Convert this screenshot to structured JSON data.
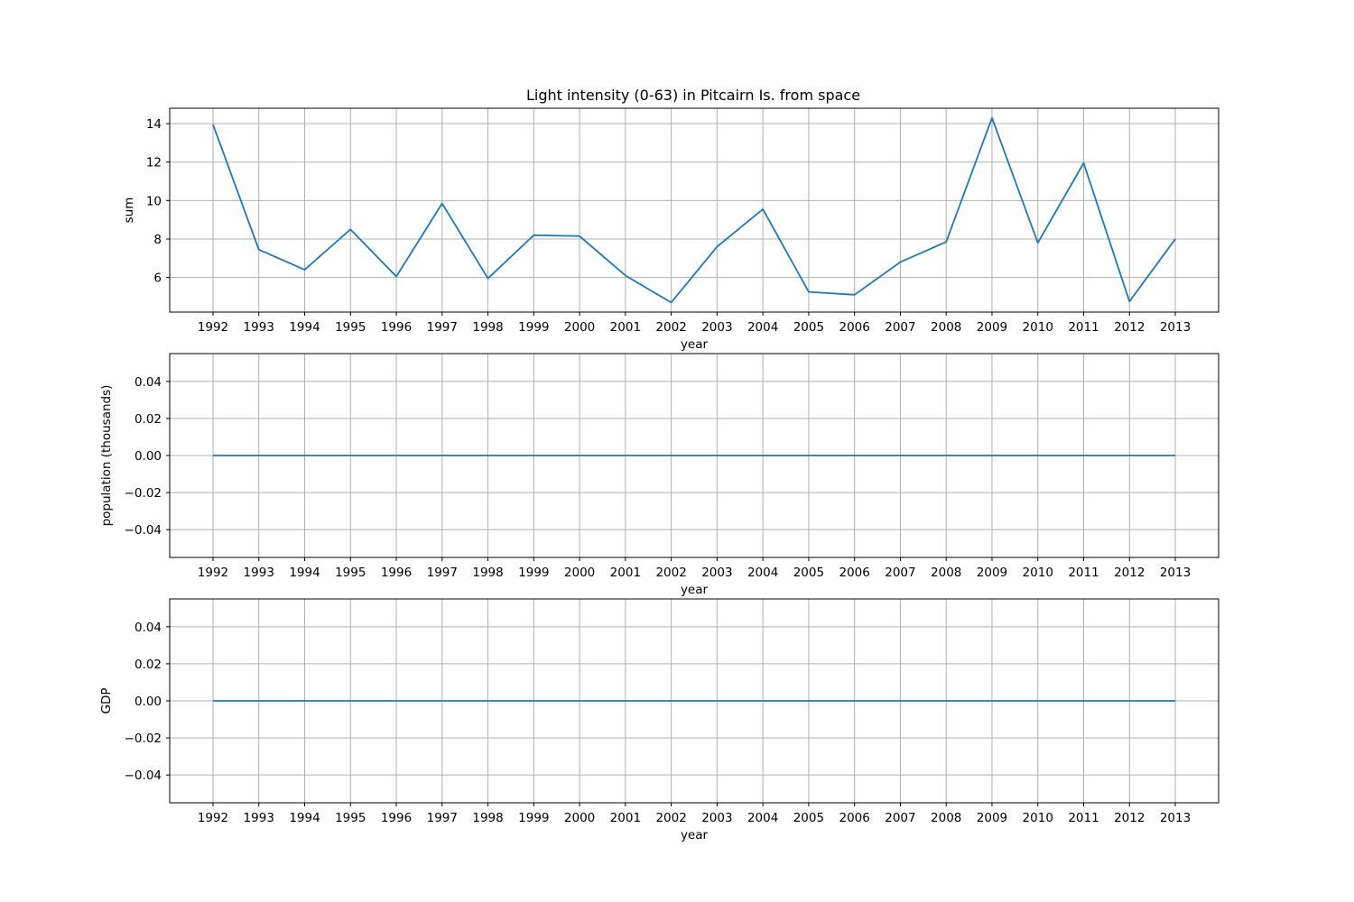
{
  "figure": {
    "title": "Light intensity (0-63) in Pitcairn Is. from space",
    "line_color": "#1f77b4",
    "grid_color": "#b0b0b0"
  },
  "chart_data": [
    {
      "type": "line",
      "title": "Light intensity (0-63) in Pitcairn Is. from space",
      "xlabel": "year",
      "ylabel": "sum",
      "grid": true,
      "x": [
        1992,
        1993,
        1994,
        1995,
        1996,
        1997,
        1998,
        1999,
        2000,
        2001,
        2002,
        2003,
        2004,
        2005,
        2006,
        2007,
        2008,
        2009,
        2010,
        2011,
        2012,
        2013
      ],
      "values": [
        13.95,
        7.45,
        6.4,
        8.5,
        6.05,
        9.85,
        5.95,
        8.2,
        8.15,
        6.1,
        4.7,
        7.6,
        9.55,
        5.25,
        5.1,
        6.8,
        7.85,
        14.3,
        7.8,
        11.95,
        4.75,
        8.0
      ],
      "ylim": [
        4.2,
        14.8
      ],
      "yticks": [
        6,
        8,
        10,
        12,
        14
      ],
      "ytick_labels": [
        "6",
        "8",
        "10",
        "12",
        "14"
      ]
    },
    {
      "type": "line",
      "title": "",
      "xlabel": "year",
      "ylabel": "population (thousands)",
      "grid": true,
      "x": [
        1992,
        1993,
        1994,
        1995,
        1996,
        1997,
        1998,
        1999,
        2000,
        2001,
        2002,
        2003,
        2004,
        2005,
        2006,
        2007,
        2008,
        2009,
        2010,
        2011,
        2012,
        2013
      ],
      "values": [
        0,
        0,
        0,
        0,
        0,
        0,
        0,
        0,
        0,
        0,
        0,
        0,
        0,
        0,
        0,
        0,
        0,
        0,
        0,
        0,
        0,
        0
      ],
      "ylim": [
        -0.055,
        0.055
      ],
      "yticks": [
        -0.04,
        -0.02,
        0.0,
        0.02,
        0.04
      ],
      "ytick_labels": [
        "−0.04",
        "−0.02",
        "0.00",
        "0.02",
        "0.04"
      ]
    },
    {
      "type": "line",
      "title": "",
      "xlabel": "year",
      "ylabel": "GDP",
      "grid": true,
      "x": [
        1992,
        1993,
        1994,
        1995,
        1996,
        1997,
        1998,
        1999,
        2000,
        2001,
        2002,
        2003,
        2004,
        2005,
        2006,
        2007,
        2008,
        2009,
        2010,
        2011,
        2012,
        2013
      ],
      "values": [
        0,
        0,
        0,
        0,
        0,
        0,
        0,
        0,
        0,
        0,
        0,
        0,
        0,
        0,
        0,
        0,
        0,
        0,
        0,
        0,
        0,
        0
      ],
      "ylim": [
        -0.055,
        0.055
      ],
      "yticks": [
        -0.04,
        -0.02,
        0.0,
        0.02,
        0.04
      ],
      "ytick_labels": [
        "−0.04",
        "−0.02",
        "0.00",
        "0.02",
        "0.04"
      ]
    }
  ]
}
